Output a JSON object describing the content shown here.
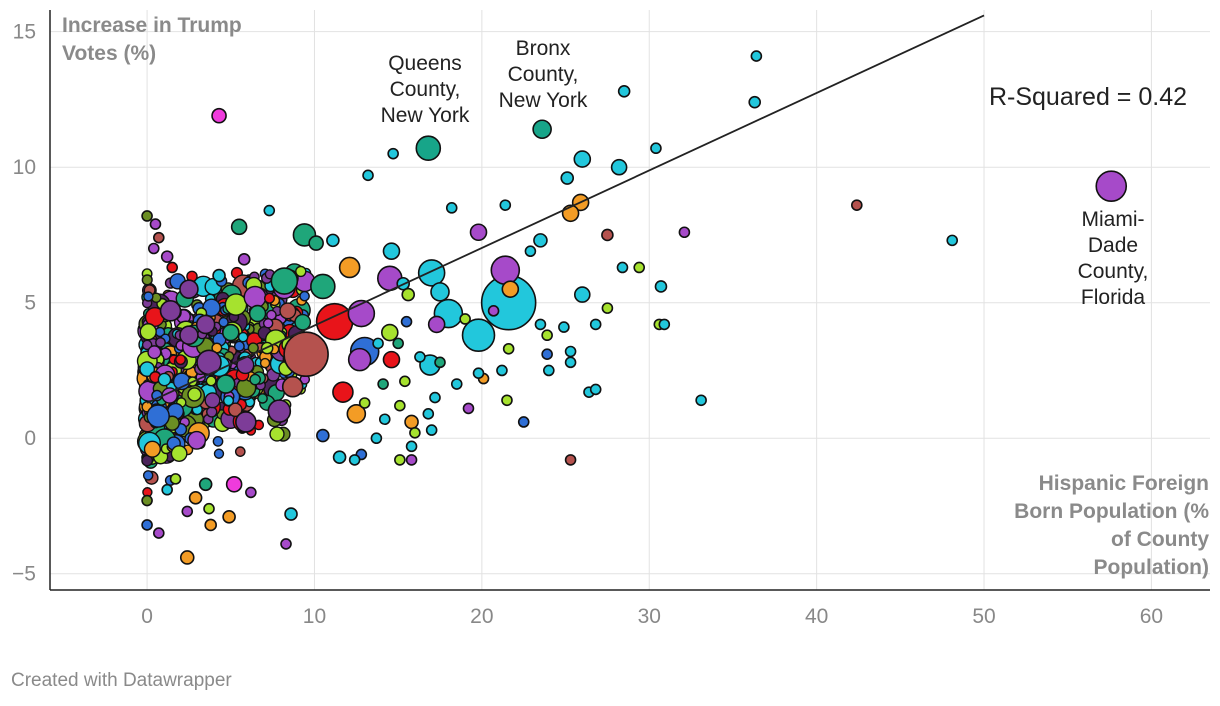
{
  "chart_data": {
    "type": "scatter",
    "title": "",
    "xlabel": "Hispanic Foreign Born Population (% of County Population)",
    "ylabel": "Increase in Trump Votes (%)",
    "xlim": [
      -5.8,
      63.5
    ],
    "ylim": [
      -5.6,
      15.8
    ],
    "x_ticks": [
      "0",
      "10",
      "20",
      "30",
      "40",
      "50",
      "60"
    ],
    "y_ticks": [
      "15",
      "10",
      "5",
      "0",
      "−5"
    ],
    "grid": true,
    "trendline": {
      "x": [
        0,
        50
      ],
      "y": [
        1.3,
        15.6
      ]
    },
    "r_squared_label": "R-Squared = 0.42",
    "annotations": [
      {
        "lines": [
          "Queens",
          "County,",
          "New York"
        ]
      },
      {
        "lines": [
          "Bronx",
          "County,",
          "New York"
        ]
      },
      {
        "lines": [
          "Miami-",
          "Dade",
          "County,",
          "Florida"
        ]
      }
    ],
    "points": [
      {
        "x": 57.6,
        "y": 9.3,
        "r": 15,
        "c": "#a64ac9"
      },
      {
        "x": 16.8,
        "y": 10.7,
        "r": 12,
        "c": "#17a589"
      },
      {
        "x": 23.6,
        "y": 11.4,
        "r": 9,
        "c": "#17a589"
      },
      {
        "x": 4.3,
        "y": 11.9,
        "r": 7,
        "c": "#ef3bdc"
      },
      {
        "x": 36.4,
        "y": 14.1,
        "r": 5,
        "c": "#22c7dc"
      },
      {
        "x": 36.3,
        "y": 12.4,
        "r": 5.5,
        "c": "#22c7dc"
      },
      {
        "x": 28.5,
        "y": 12.8,
        "r": 5.5,
        "c": "#22c7dc"
      },
      {
        "x": 30.4,
        "y": 10.7,
        "r": 5,
        "c": "#22c7dc"
      },
      {
        "x": 26.0,
        "y": 10.3,
        "r": 8,
        "c": "#22c7dc"
      },
      {
        "x": 28.2,
        "y": 10.0,
        "r": 7.5,
        "c": "#22c7dc"
      },
      {
        "x": 25.1,
        "y": 9.6,
        "r": 6,
        "c": "#22c7dc"
      },
      {
        "x": 14.7,
        "y": 10.5,
        "r": 5,
        "c": "#22c7dc"
      },
      {
        "x": 13.2,
        "y": 9.7,
        "r": 5,
        "c": "#22c7dc"
      },
      {
        "x": 42.4,
        "y": 8.6,
        "r": 5,
        "c": "#b5524e"
      },
      {
        "x": 48.1,
        "y": 7.3,
        "r": 5,
        "c": "#22c7dc"
      },
      {
        "x": 32.1,
        "y": 7.6,
        "r": 5,
        "c": "#a64ac9"
      },
      {
        "x": 27.5,
        "y": 7.5,
        "r": 5.5,
        "c": "#b5524e"
      },
      {
        "x": 25.9,
        "y": 8.7,
        "r": 8,
        "c": "#f39c25"
      },
      {
        "x": 25.3,
        "y": 8.3,
        "r": 8,
        "c": "#f39c25"
      },
      {
        "x": 21.4,
        "y": 8.6,
        "r": 5,
        "c": "#22c7dc"
      },
      {
        "x": 18.2,
        "y": 8.5,
        "r": 5,
        "c": "#22c7dc"
      },
      {
        "x": 19.8,
        "y": 7.6,
        "r": 8,
        "c": "#a64ac9"
      },
      {
        "x": 5.5,
        "y": 7.8,
        "r": 7.5,
        "c": "#1fa67a"
      },
      {
        "x": 7.3,
        "y": 8.4,
        "r": 5,
        "c": "#22c7dc"
      },
      {
        "x": 0.0,
        "y": 8.2,
        "r": 5,
        "c": "#6b8e23"
      },
      {
        "x": 9.4,
        "y": 7.5,
        "r": 11,
        "c": "#1fa67a"
      },
      {
        "x": 10.1,
        "y": 7.2,
        "r": 7,
        "c": "#1fa67a"
      },
      {
        "x": 11.1,
        "y": 7.3,
        "r": 6,
        "c": "#22c7dc"
      },
      {
        "x": 14.6,
        "y": 6.9,
        "r": 8,
        "c": "#22c7dc"
      },
      {
        "x": 23.5,
        "y": 7.3,
        "r": 6.5,
        "c": "#22c7dc"
      },
      {
        "x": 22.9,
        "y": 6.9,
        "r": 5,
        "c": "#22c7dc"
      },
      {
        "x": 21.4,
        "y": 6.2,
        "r": 14,
        "c": "#a64ac9"
      },
      {
        "x": 17.0,
        "y": 6.1,
        "r": 13,
        "c": "#22c7dc"
      },
      {
        "x": 14.5,
        "y": 5.9,
        "r": 12,
        "c": "#a64ac9"
      },
      {
        "x": 12.1,
        "y": 6.3,
        "r": 10,
        "c": "#f39c25"
      },
      {
        "x": 8.2,
        "y": 5.8,
        "r": 13,
        "c": "#1fa67a"
      },
      {
        "x": 10.5,
        "y": 5.6,
        "r": 12,
        "c": "#1fa67a"
      },
      {
        "x": 21.6,
        "y": 5.0,
        "r": 27,
        "c": "#22c7dc"
      },
      {
        "x": 21.7,
        "y": 5.5,
        "r": 8,
        "c": "#f39c25"
      },
      {
        "x": 18.0,
        "y": 4.6,
        "r": 14,
        "c": "#22c7dc"
      },
      {
        "x": 19.8,
        "y": 3.8,
        "r": 16,
        "c": "#22c7dc"
      },
      {
        "x": 17.5,
        "y": 5.4,
        "r": 9,
        "c": "#22c7dc"
      },
      {
        "x": 11.2,
        "y": 4.3,
        "r": 18,
        "c": "#e8141a"
      },
      {
        "x": 12.8,
        "y": 4.6,
        "r": 13,
        "c": "#a64ac9"
      },
      {
        "x": 9.5,
        "y": 3.1,
        "r": 22,
        "c": "#b5524e"
      },
      {
        "x": 13.0,
        "y": 3.2,
        "r": 14,
        "c": "#2f6fd6"
      },
      {
        "x": 12.7,
        "y": 2.9,
        "r": 11,
        "c": "#a64ac9"
      },
      {
        "x": 17.3,
        "y": 4.2,
        "r": 8,
        "c": "#a64ac9"
      },
      {
        "x": 16.9,
        "y": 2.7,
        "r": 10,
        "c": "#22c7dc"
      },
      {
        "x": 14.5,
        "y": 3.9,
        "r": 8,
        "c": "#a6e22e"
      },
      {
        "x": 14.6,
        "y": 2.9,
        "r": 8,
        "c": "#e8141a"
      },
      {
        "x": 12.5,
        "y": 0.9,
        "r": 9,
        "c": "#f39c25"
      },
      {
        "x": 11.7,
        "y": 1.7,
        "r": 10,
        "c": "#e8141a"
      },
      {
        "x": 8.7,
        "y": 1.9,
        "r": 10,
        "c": "#b5524e"
      },
      {
        "x": 3.7,
        "y": 2.8,
        "r": 12,
        "c": "#7d3c98"
      },
      {
        "x": 7.9,
        "y": 1.0,
        "r": 11,
        "c": "#7d3c98"
      },
      {
        "x": 5.9,
        "y": 0.6,
        "r": 10,
        "c": "#7d3c98"
      },
      {
        "x": 4.7,
        "y": 2.0,
        "r": 9,
        "c": "#1fa67a"
      },
      {
        "x": 2.5,
        "y": 5.5,
        "r": 9,
        "c": "#7d3c98"
      },
      {
        "x": 1.4,
        "y": 4.7,
        "r": 10,
        "c": "#7d3c98"
      },
      {
        "x": 2.5,
        "y": 3.8,
        "r": 9,
        "c": "#7d3c98"
      },
      {
        "x": 3.5,
        "y": 4.2,
        "r": 9,
        "c": "#7d3c98"
      },
      {
        "x": 5.0,
        "y": 3.9,
        "r": 8,
        "c": "#1fa67a"
      },
      {
        "x": 6.6,
        "y": 4.6,
        "r": 8,
        "c": "#1fa67a"
      },
      {
        "x": 4.3,
        "y": 6.0,
        "r": 6,
        "c": "#22c7dc"
      },
      {
        "x": 5.8,
        "y": 6.6,
        "r": 5.5,
        "c": "#a64ac9"
      },
      {
        "x": 1.2,
        "y": 6.7,
        "r": 5.5,
        "c": "#a64ac9"
      },
      {
        "x": 0.7,
        "y": 7.4,
        "r": 5,
        "c": "#b5524e"
      },
      {
        "x": 0.5,
        "y": 7.9,
        "r": 5,
        "c": "#a64ac9"
      },
      {
        "x": 0.4,
        "y": 7.0,
        "r": 5,
        "c": "#a64ac9"
      },
      {
        "x": 1.5,
        "y": 6.3,
        "r": 5,
        "c": "#e8141a"
      },
      {
        "x": 15.3,
        "y": 5.7,
        "r": 6,
        "c": "#22c7dc"
      },
      {
        "x": 15.6,
        "y": 5.3,
        "r": 6,
        "c": "#a6e22e"
      },
      {
        "x": 26.0,
        "y": 5.3,
        "r": 7.5,
        "c": "#22c7dc"
      },
      {
        "x": 30.7,
        "y": 5.6,
        "r": 5.5,
        "c": "#22c7dc"
      },
      {
        "x": 28.4,
        "y": 6.3,
        "r": 5,
        "c": "#22c7dc"
      },
      {
        "x": 29.4,
        "y": 6.3,
        "r": 5,
        "c": "#a6e22e"
      },
      {
        "x": 27.5,
        "y": 4.8,
        "r": 5,
        "c": "#a6e22e"
      },
      {
        "x": 26.8,
        "y": 4.2,
        "r": 5,
        "c": "#22c7dc"
      },
      {
        "x": 30.6,
        "y": 4.2,
        "r": 5,
        "c": "#a6e22e"
      },
      {
        "x": 30.9,
        "y": 4.2,
        "r": 5,
        "c": "#22c7dc"
      },
      {
        "x": 23.5,
        "y": 4.2,
        "r": 5,
        "c": "#22c7dc"
      },
      {
        "x": 24.9,
        "y": 4.1,
        "r": 5,
        "c": "#22c7dc"
      },
      {
        "x": 23.9,
        "y": 3.8,
        "r": 5,
        "c": "#a6e22e"
      },
      {
        "x": 19.0,
        "y": 4.4,
        "r": 5,
        "c": "#a6e22e"
      },
      {
        "x": 20.7,
        "y": 4.7,
        "r": 5,
        "c": "#a64ac9"
      },
      {
        "x": 21.6,
        "y": 3.3,
        "r": 5,
        "c": "#a6e22e"
      },
      {
        "x": 23.9,
        "y": 3.1,
        "r": 5,
        "c": "#2f6fd6"
      },
      {
        "x": 25.3,
        "y": 3.2,
        "r": 5,
        "c": "#22c7dc"
      },
      {
        "x": 25.3,
        "y": 2.8,
        "r": 5,
        "c": "#22c7dc"
      },
      {
        "x": 24.0,
        "y": 2.5,
        "r": 5,
        "c": "#22c7dc"
      },
      {
        "x": 21.2,
        "y": 2.5,
        "r": 5,
        "c": "#22c7dc"
      },
      {
        "x": 20.1,
        "y": 2.2,
        "r": 5,
        "c": "#f39c25"
      },
      {
        "x": 19.8,
        "y": 2.4,
        "r": 5,
        "c": "#22c7dc"
      },
      {
        "x": 26.4,
        "y": 1.7,
        "r": 5,
        "c": "#22c7dc"
      },
      {
        "x": 26.8,
        "y": 1.8,
        "r": 5,
        "c": "#22c7dc"
      },
      {
        "x": 33.1,
        "y": 1.4,
        "r": 5,
        "c": "#22c7dc"
      },
      {
        "x": 21.5,
        "y": 1.4,
        "r": 5,
        "c": "#a6e22e"
      },
      {
        "x": 22.5,
        "y": 0.6,
        "r": 5,
        "c": "#2f6fd6"
      },
      {
        "x": 19.2,
        "y": 1.1,
        "r": 5,
        "c": "#a64ac9"
      },
      {
        "x": 18.5,
        "y": 2.0,
        "r": 5,
        "c": "#22c7dc"
      },
      {
        "x": 17.2,
        "y": 1.5,
        "r": 5,
        "c": "#22c7dc"
      },
      {
        "x": 16.8,
        "y": 0.9,
        "r": 5,
        "c": "#22c7dc"
      },
      {
        "x": 15.8,
        "y": 0.6,
        "r": 6.5,
        "c": "#f39c25"
      },
      {
        "x": 16.0,
        "y": 0.2,
        "r": 5,
        "c": "#a6e22e"
      },
      {
        "x": 17.0,
        "y": 0.3,
        "r": 5,
        "c": "#22c7dc"
      },
      {
        "x": 15.1,
        "y": 1.2,
        "r": 5,
        "c": "#a6e22e"
      },
      {
        "x": 14.2,
        "y": 0.7,
        "r": 5,
        "c": "#22c7dc"
      },
      {
        "x": 13.7,
        "y": 0.0,
        "r": 5,
        "c": "#22c7dc"
      },
      {
        "x": 15.8,
        "y": -0.3,
        "r": 5,
        "c": "#22c7dc"
      },
      {
        "x": 15.1,
        "y": -0.8,
        "r": 5,
        "c": "#a6e22e"
      },
      {
        "x": 15.8,
        "y": -0.8,
        "r": 5,
        "c": "#a64ac9"
      },
      {
        "x": 25.3,
        "y": -0.8,
        "r": 5,
        "c": "#b5524e"
      },
      {
        "x": 12.8,
        "y": -0.6,
        "r": 5,
        "c": "#2f6fd6"
      },
      {
        "x": 11.5,
        "y": -0.7,
        "r": 6,
        "c": "#22c7dc"
      },
      {
        "x": 12.4,
        "y": -0.8,
        "r": 5,
        "c": "#22c7dc"
      },
      {
        "x": 10.5,
        "y": 0.1,
        "r": 6,
        "c": "#2f6fd6"
      },
      {
        "x": 13.0,
        "y": 1.3,
        "r": 5,
        "c": "#a6e22e"
      },
      {
        "x": 14.1,
        "y": 2.0,
        "r": 5,
        "c": "#1fa67a"
      },
      {
        "x": 15.4,
        "y": 2.1,
        "r": 5,
        "c": "#a6e22e"
      },
      {
        "x": 13.8,
        "y": 3.5,
        "r": 5,
        "c": "#22c7dc"
      },
      {
        "x": 15.0,
        "y": 3.5,
        "r": 5,
        "c": "#1fa67a"
      },
      {
        "x": 15.5,
        "y": 4.3,
        "r": 5,
        "c": "#2f6fd6"
      },
      {
        "x": 16.3,
        "y": 3.0,
        "r": 5,
        "c": "#22c7dc"
      },
      {
        "x": 17.5,
        "y": 2.8,
        "r": 5,
        "c": "#1fa67a"
      },
      {
        "x": 0.0,
        "y": -2.3,
        "r": 5,
        "c": "#6b8e23"
      },
      {
        "x": 0.0,
        "y": -3.2,
        "r": 5,
        "c": "#2f6fd6"
      },
      {
        "x": 0.7,
        "y": -3.5,
        "r": 5,
        "c": "#a64ac9"
      },
      {
        "x": 2.4,
        "y": -4.4,
        "r": 6.5,
        "c": "#f39c25"
      },
      {
        "x": 2.4,
        "y": -2.7,
        "r": 5,
        "c": "#a64ac9"
      },
      {
        "x": 3.7,
        "y": -2.6,
        "r": 5,
        "c": "#a6e22e"
      },
      {
        "x": 3.8,
        "y": -3.2,
        "r": 5.5,
        "c": "#f39c25"
      },
      {
        "x": 4.9,
        "y": -2.9,
        "r": 6,
        "c": "#f39c25"
      },
      {
        "x": 5.2,
        "y": -1.7,
        "r": 7.5,
        "c": "#ef3bdc"
      },
      {
        "x": 6.2,
        "y": -2.0,
        "r": 5,
        "c": "#a64ac9"
      },
      {
        "x": 8.3,
        "y": -3.9,
        "r": 5,
        "c": "#a64ac9"
      },
      {
        "x": 8.6,
        "y": -2.8,
        "r": 6,
        "c": "#22c7dc"
      },
      {
        "x": 3.5,
        "y": -1.7,
        "r": 6,
        "c": "#1fa67a"
      },
      {
        "x": 1.7,
        "y": -1.5,
        "r": 5,
        "c": "#a6e22e"
      },
      {
        "x": 2.9,
        "y": -2.2,
        "r": 6,
        "c": "#f39c25"
      },
      {
        "x": 1.2,
        "y": -1.9,
        "r": 5,
        "c": "#22c7dc"
      }
    ]
  },
  "footer": {
    "credit": "Created with Datawrapper"
  }
}
